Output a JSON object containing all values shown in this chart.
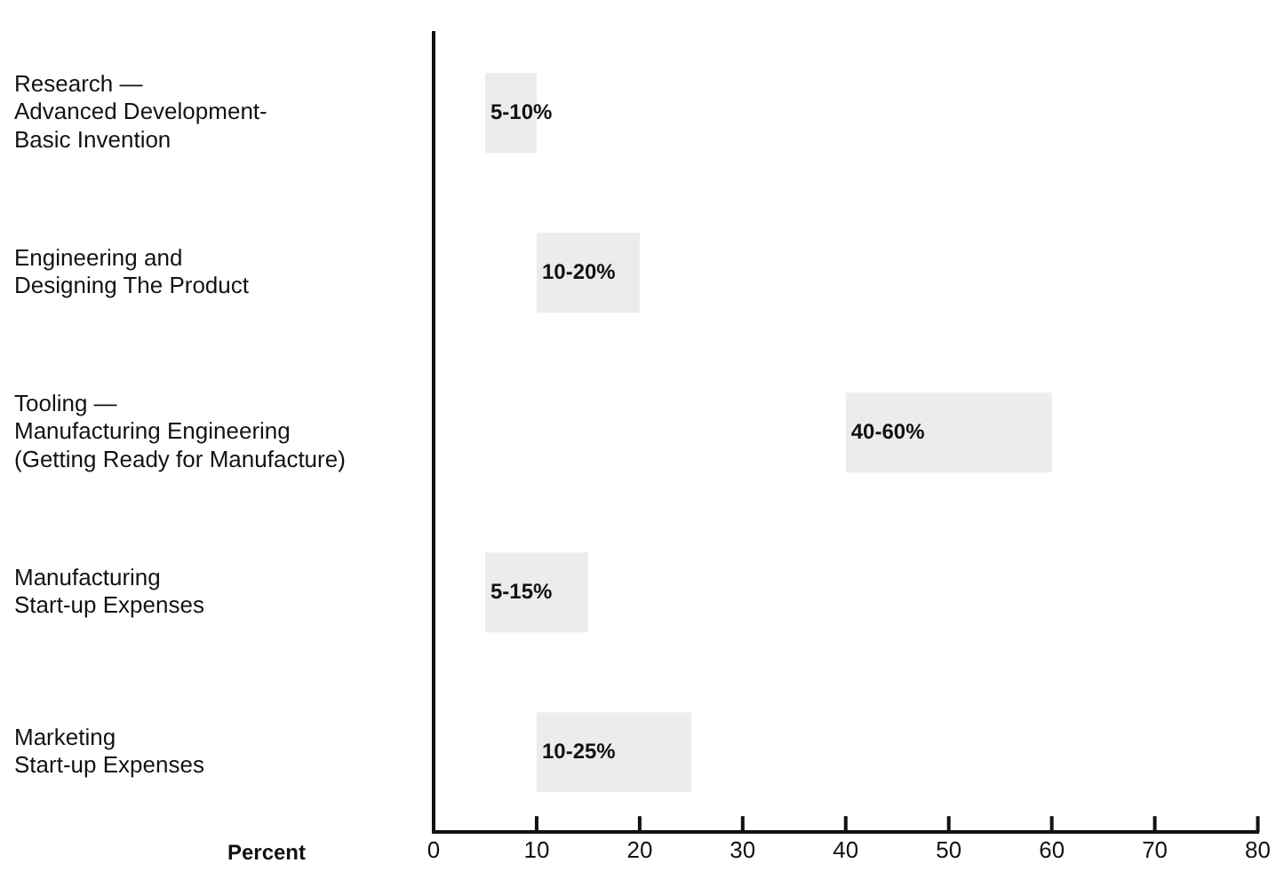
{
  "chart_data": {
    "type": "bar",
    "orientation": "horizontal",
    "xlabel": "Percent",
    "categories": [
      "Research —\nAdvanced Development-\nBasic Invention",
      "Engineering and\nDesigning The Product",
      "Tooling —\nManufacturing Engineering\n(Getting Ready for Manufacture)",
      "Manufacturing\nStart-up Expenses",
      "Marketing\nStart-up Expenses"
    ],
    "base": [
      5,
      10,
      40,
      5,
      10
    ],
    "values": [
      5,
      10,
      20,
      10,
      15
    ],
    "annotations": [
      "5-10%",
      "10-20%",
      "40-60%",
      "5-15%",
      "10-25%"
    ],
    "color": "#ececec",
    "xlim": [
      0,
      80
    ],
    "xticks": [
      0,
      10,
      20,
      30,
      40,
      50,
      60,
      70,
      80
    ],
    "grid": false,
    "legend": false
  }
}
